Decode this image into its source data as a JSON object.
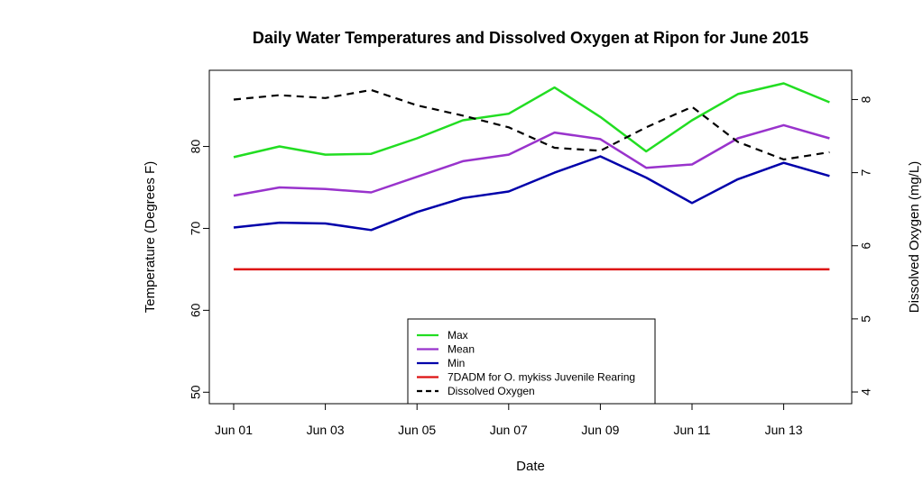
{
  "chart_data": {
    "type": "line",
    "title": "Daily Water Temperatures and Dissolved Oxygen at Ripon for June 2015",
    "xlabel": "Date",
    "ylabel_left": "Temperature (Degrees F)",
    "ylabel_right": "Dissolved Oxygen (mg/L)",
    "x": [
      "Jun 01",
      "Jun 02",
      "Jun 03",
      "Jun 04",
      "Jun 05",
      "Jun 06",
      "Jun 07",
      "Jun 08",
      "Jun 09",
      "Jun 10",
      "Jun 11",
      "Jun 12",
      "Jun 13",
      "Jun 14"
    ],
    "x_tick_labels": [
      "Jun 01",
      "Jun 03",
      "Jun 05",
      "Jun 07",
      "Jun 09",
      "Jun 11",
      "Jun 13"
    ],
    "ylim_left": [
      48.6,
      89.3
    ],
    "yticks_left": [
      50,
      60,
      70,
      80
    ],
    "ylim_right": [
      3.84,
      8.4
    ],
    "yticks_right": [
      4,
      5,
      6,
      7,
      8
    ],
    "legend_position": "bottom-center",
    "grid": false,
    "series": [
      {
        "name": "Max",
        "axis": "left",
        "color": "#22dd22",
        "dash": false,
        "values": [
          78.7,
          80.0,
          79.0,
          79.1,
          81.0,
          83.2,
          84.0,
          87.2,
          83.6,
          79.4,
          83.2,
          86.4,
          87.7,
          85.4
        ]
      },
      {
        "name": "Mean",
        "axis": "left",
        "color": "#9933cc",
        "dash": false,
        "values": [
          74.0,
          75.0,
          74.8,
          74.4,
          76.3,
          78.2,
          79.0,
          81.7,
          80.9,
          77.4,
          77.8,
          81.0,
          82.6,
          81.0
        ]
      },
      {
        "name": "Min",
        "axis": "left",
        "color": "#0000aa",
        "dash": false,
        "values": [
          70.1,
          70.7,
          70.6,
          69.8,
          72.0,
          73.7,
          74.5,
          76.8,
          78.8,
          76.2,
          73.1,
          76.0,
          78.0,
          76.4
        ]
      },
      {
        "name": "7DADM for O. mykiss Juvenile Rearing",
        "axis": "left",
        "color": "#dd1111",
        "dash": false,
        "values": [
          65,
          65,
          65,
          65,
          65,
          65,
          65,
          65,
          65,
          65,
          65,
          65,
          65,
          65
        ]
      },
      {
        "name": "Dissolved Oxygen",
        "axis": "right",
        "color": "#000000",
        "dash": true,
        "values": [
          8.0,
          8.06,
          8.02,
          8.13,
          7.92,
          7.78,
          7.62,
          7.34,
          7.3,
          7.62,
          7.9,
          7.42,
          7.18,
          7.28
        ]
      }
    ]
  }
}
